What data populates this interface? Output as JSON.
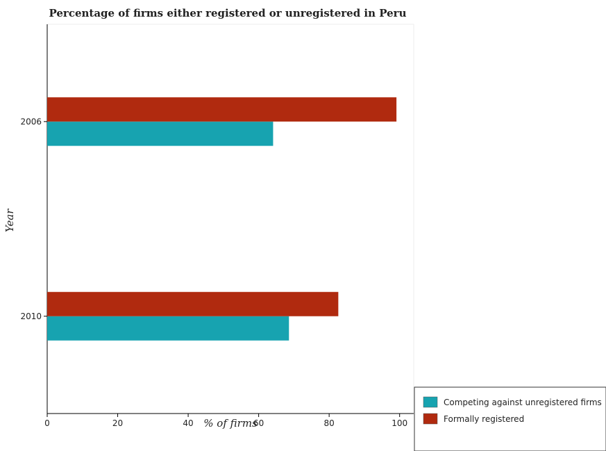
{
  "chart_data": {
    "type": "bar",
    "orientation": "horizontal",
    "title": "Percentage of firms either registered or unregistered in Peru",
    "xlabel": "% of firms",
    "ylabel": "Year",
    "categories": [
      "2006",
      "2010"
    ],
    "series": [
      {
        "name": "Competing against unregistered firms",
        "values": [
          64.1,
          68.6
        ],
        "color": "#17a3b0"
      },
      {
        "name": "Formally registered",
        "values": [
          99.1,
          82.6
        ],
        "color": "#b02a0f"
      }
    ],
    "xlim": [
      0,
      104
    ],
    "xticks": [
      0,
      20,
      40,
      60,
      80,
      100
    ],
    "grid": false,
    "legend_position": "bottom-right"
  }
}
